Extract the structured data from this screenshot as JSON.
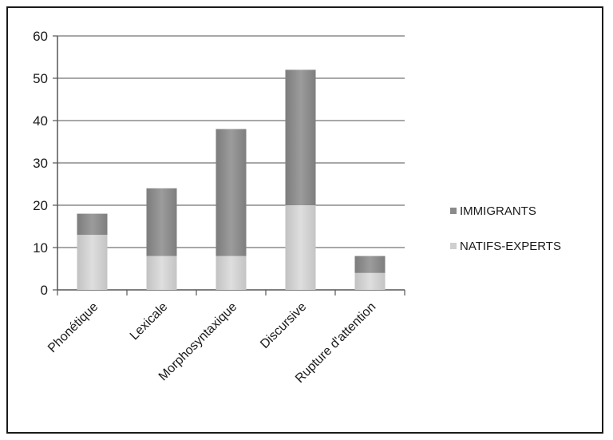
{
  "chart_data": {
    "type": "bar",
    "stacked": true,
    "categories": [
      "Phonétique",
      "Lexicale",
      "Morphosyntaxique",
      "Discursive",
      "Rupture d'attention"
    ],
    "series": [
      {
        "name": "NATIFS-EXPERTS",
        "values": [
          13,
          8,
          8,
          20,
          4
        ],
        "color": "#cfcfcf"
      },
      {
        "name": "IMMIGRANTS",
        "values": [
          5,
          16,
          30,
          32,
          4
        ],
        "color": "#8a8a8a"
      }
    ],
    "ylim": [
      0,
      60
    ],
    "yticks": [
      0,
      10,
      20,
      30,
      40,
      50,
      60
    ],
    "grid": true,
    "legend_position": "right",
    "legend_order": [
      "IMMIGRANTS",
      "NATIFS-EXPERTS"
    ]
  }
}
